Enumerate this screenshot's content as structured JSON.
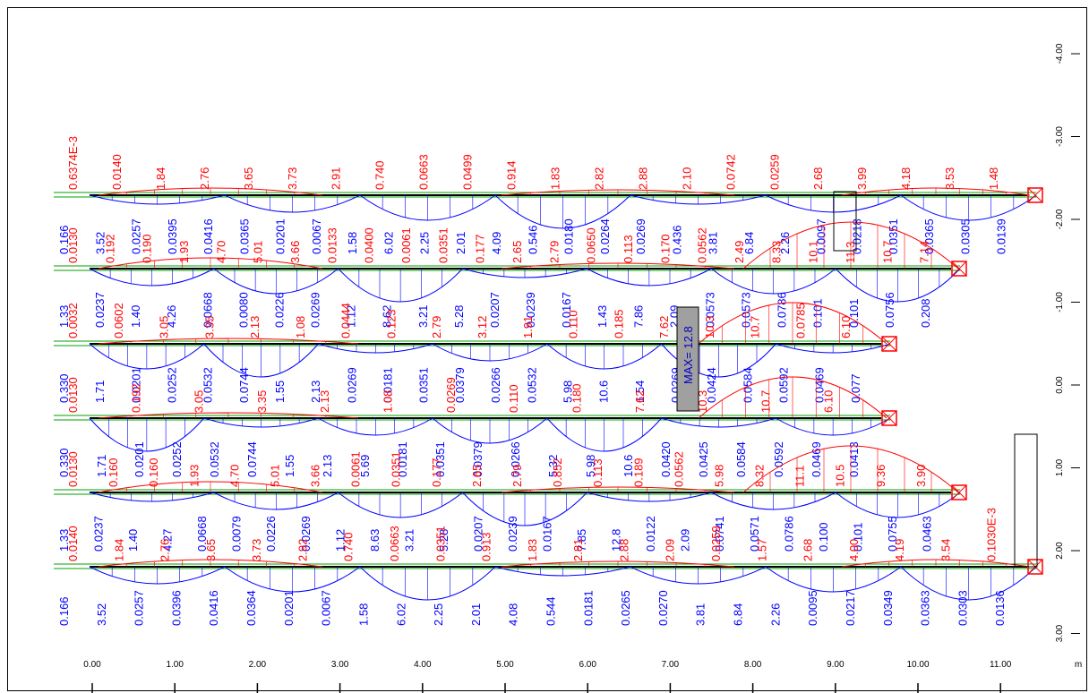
{
  "x_axis": {
    "ticks": [
      "0.00",
      "1.00",
      "2.00",
      "3.00",
      "4.00",
      "5.00",
      "6.00",
      "7.00",
      "8.00",
      "9.00",
      "10.00",
      "11.00"
    ],
    "unit": "m"
  },
  "y_axis": {
    "ticks": [
      "-4.00",
      "-3.00",
      "-2.00",
      "-1.00",
      "0.00",
      "1.00",
      "2.00",
      "3.00"
    ]
  },
  "beams": [
    {
      "top": [
        "0.6374E-3",
        "0.0140",
        "1.84",
        "2.76",
        "3.65",
        "3.73",
        "2.91",
        "0.740",
        "0.0663",
        "0.0499",
        "0.914",
        "1.83",
        "2.82",
        "2.88",
        "2.10",
        "0.0742",
        "0.0259",
        "2.68",
        "3.99",
        "4.18",
        "3.53",
        "1.48"
      ],
      "bottom": [
        "0.166",
        "3.52",
        "0.0257",
        "0.0395",
        "0.0416",
        "0.0365",
        "0.0201",
        "0.0067",
        "1.58",
        "6.02",
        "2.25",
        "2.01",
        "4.09",
        "0.546",
        "0.0180",
        "0.0264",
        "0.0269",
        "0.436",
        "3.81",
        "6.84",
        "2.26",
        "0.0097",
        "0.0218",
        "0.0351",
        "0.0365",
        "0.0305",
        "0.0139"
      ]
    },
    {
      "top": [
        "0.0130",
        "0.192",
        "0.190",
        "1.93",
        "4.70",
        "5.01",
        "3.66",
        "0.0133",
        "0.0400",
        "0.0061",
        "0.0351",
        "0.177",
        "2.65",
        "2.79",
        "0.0650",
        "0.113",
        "0.170",
        "0.0562",
        "2.49",
        "8.33",
        "10.1",
        "11.3",
        "10.7",
        "7.14"
      ],
      "bottom": [
        "1.33",
        "0.0237",
        "1.40",
        "4.26",
        "0.0668",
        "0.0080",
        "0.0226",
        "0.0269",
        "1.12",
        "8.62",
        "3.21",
        "5.28",
        "0.0207",
        "0.0239",
        "0.0167",
        "1.43",
        "7.86",
        "2.09",
        "0.0573",
        "0.0573",
        "0.0786",
        "0.101",
        "0.101",
        "0.0756",
        "0.208"
      ]
    },
    {
      "top": [
        "0.0032",
        "0.0602",
        "3.05",
        "3.35",
        "2.13",
        "1.08",
        "0.0444",
        "0.123",
        "2.79",
        "3.12",
        "1.91",
        "0.110",
        "0.185",
        "7.62",
        "10.3",
        "10.7",
        "0.0785",
        "6.10"
      ],
      "bottom": [
        "0.330",
        "1.71",
        "0.0201",
        "0.0252",
        "0.0532",
        "0.0744",
        "1.55",
        "2.13",
        "0.0269",
        "0.0181",
        "0.0351",
        "0.0379",
        "0.0266",
        "0.0532",
        "5.98",
        "10.6",
        "1.54",
        "0.0269",
        "0.0424",
        "0.0584",
        "0.0592",
        "0.0469",
        "0.077"
      ]
    },
    {
      "top": [
        "0.0130",
        "0.192",
        "3.05",
        "3.35",
        "2.13",
        "1.08",
        "0.0269",
        "0.110",
        "0.180",
        "7.62",
        "10.3",
        "10.7",
        "6.10"
      ],
      "bottom": [
        "0.330",
        "1.71",
        "0.0201",
        "0.0252",
        "0.0532",
        "0.0744",
        "1.55",
        "2.13",
        "5.69",
        "0.0181",
        "0.0351",
        "0.0379",
        "0.0266",
        "5.32",
        "5.98",
        "10.6",
        "0.0420",
        "0.0425",
        "0.0584",
        "0.0592",
        "0.0469",
        "0.0413"
      ]
    },
    {
      "top": [
        "0.0130",
        "0.160",
        "0.160",
        "1.93",
        "4.70",
        "5.01",
        "3.66",
        "0.0061",
        "0.0351",
        "0.177",
        "2.65",
        "2.79",
        "0.852",
        "0.113",
        "0.189",
        "0.0562",
        "5.98",
        "8.32",
        "11.1",
        "10.5",
        "9.36",
        "3.90"
      ],
      "bottom": [
        "1.33",
        "0.0237",
        "1.40",
        "4.27",
        "0.0668",
        "0.0079",
        "0.0226",
        "0.0269",
        "1.12",
        "8.63",
        "3.21",
        "5.28",
        "0.0207",
        "0.0239",
        "0.0167",
        "7.85",
        "12.8",
        "0.0122",
        "2.09",
        "0.0741",
        "0.0571",
        "0.0786",
        "0.100",
        "0.101",
        "0.0755",
        "0.0463"
      ]
    },
    {
      "top": [
        "0.0140",
        "1.84",
        "2.76",
        "3.65",
        "3.73",
        "2.92",
        "0.740",
        "0.0663",
        "0.0351",
        "0.913",
        "1.83",
        "2.81",
        "2.88",
        "2.09",
        "0.0259",
        "1.57",
        "2.68",
        "4.00",
        "4.19",
        "3.54",
        "0.1030E-3"
      ],
      "bottom": [
        "0.166",
        "3.52",
        "0.0257",
        "0.0396",
        "0.0416",
        "0.0364",
        "0.0201",
        "0.0067",
        "1.58",
        "6.02",
        "2.25",
        "2.01",
        "4.08",
        "0.544",
        "0.0181",
        "0.0265",
        "0.0270",
        "3.81",
        "6.84",
        "2.26",
        "0.0095",
        "0.0217",
        "0.0349",
        "0.0363",
        "0.0303",
        "0.0136"
      ]
    }
  ],
  "max_label": "MAX= 12.8",
  "colors": {
    "moment_negative": "#ff0000",
    "moment_positive": "#0000ff",
    "beam": "#00a000",
    "support": "#ff0000",
    "max_box": "#a0a0a0"
  }
}
